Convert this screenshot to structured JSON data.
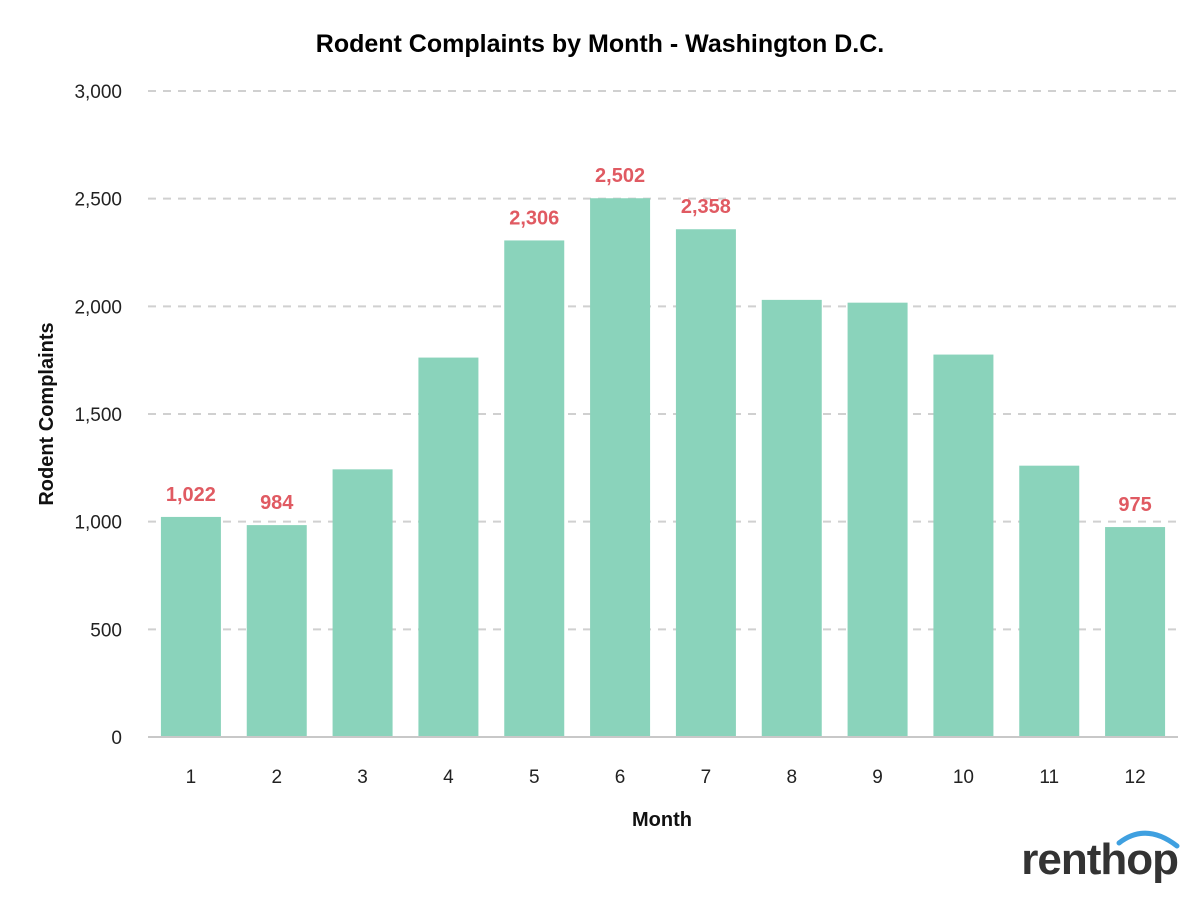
{
  "chart_data": {
    "type": "bar",
    "title": "Rodent Complaints by Month - Washington D.C.",
    "xlabel": "Month",
    "ylabel": "Rodent Complaints",
    "categories": [
      "1",
      "2",
      "3",
      "4",
      "5",
      "6",
      "7",
      "8",
      "9",
      "10",
      "11",
      "12"
    ],
    "values": [
      1022,
      984,
      1243,
      1762,
      2306,
      2502,
      2358,
      2030,
      2017,
      1776,
      1260,
      975
    ],
    "data_labels": {
      "1": "1,022",
      "2": "984",
      "5": "2,306",
      "6": "2,502",
      "7": "2,358",
      "12": "975"
    },
    "ylim": [
      0,
      3000
    ],
    "yticks": [
      0,
      500,
      1000,
      1500,
      2000,
      2500,
      3000
    ],
    "ytick_labels": [
      "0",
      "500",
      "1,000",
      "1,500",
      "2,000",
      "2,500",
      "3,000"
    ],
    "grid": true,
    "legend": "none",
    "colors": {
      "bar": "#8ad3bb",
      "data_label": "#e05a62",
      "grid": "#d0d0d0",
      "logo_arc": "#3fa0e0"
    }
  },
  "brand": {
    "logo_text": "renthop"
  }
}
